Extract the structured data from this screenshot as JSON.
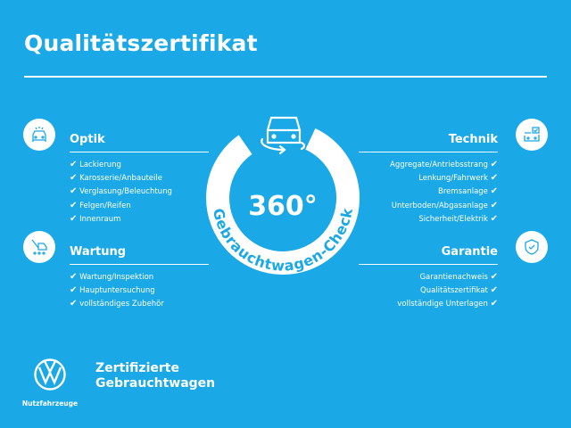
{
  "title": "Qualitätszertifikat",
  "colors": {
    "background": "#1aa8e6",
    "foreground": "#ffffff"
  },
  "check_symbol": "✔",
  "center": {
    "number": "360°",
    "arc_text": "Gebrauchtwagen-Check",
    "icon": "car-rotate-icon"
  },
  "sections": {
    "optik": {
      "title": "Optik",
      "icon": "car-light-icon",
      "items": [
        "Lackierung",
        "Karosserie/Anbauteile",
        "Verglasung/Beleuchtung",
        "Felgen/Reifen",
        "Innenraum"
      ]
    },
    "wartung": {
      "title": "Wartung",
      "icon": "service-tools-icon",
      "items": [
        "Wartung/Inspektion",
        "Hauptuntersuchung",
        "vollständiges Zubehör"
      ]
    },
    "technik": {
      "title": "Technik",
      "icon": "checklist-car-icon",
      "items": [
        "Aggregate/Antriebsstrang",
        "Lenkung/Fahrwerk",
        "Bremsanlage",
        "Unterboden/Abgasanlage",
        "Sicherheit/Elektrik"
      ]
    },
    "garantie": {
      "title": "Garantie",
      "icon": "shield-check-icon",
      "items": [
        "Garantienachweis",
        "Qualitätszertifikat",
        "vollständige Unterlagen"
      ]
    }
  },
  "footer": {
    "logo_text": "Nutzfahrzeuge",
    "brand_line1": "Zertifizierte",
    "brand_line2": "Gebrauchtwagen"
  }
}
